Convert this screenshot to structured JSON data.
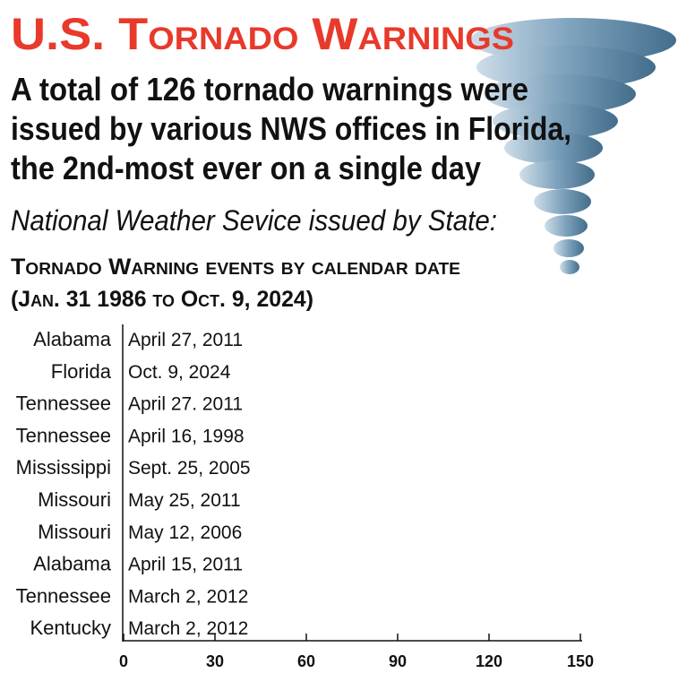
{
  "chart_data": {
    "type": "bar",
    "title": "U.S. Tornado Warnings",
    "subtitle": [
      "A total of 126 tornado warnings were",
      "issued by various NWS offices in Florida,",
      "the 2nd-most ever on a single day"
    ],
    "caption": "National Weather Sevice issued by State:",
    "chart_title": [
      "Tornado Warning events by calendar date",
      "(Jan. 31 1986 to Oct. 9, 2024)"
    ],
    "categories": [
      "Alabama",
      "Florida",
      "Tennessee",
      "Tennessee",
      "Mississippi",
      "Missouri",
      "Missouri",
      "Alabama",
      "Tennessee",
      "Kentucky"
    ],
    "labels": [
      "April 27, 2011",
      "Oct. 9, 2024",
      "April 27. 2011",
      "April 16, 1998",
      "Sept. 25, 2005",
      "May 25, 2011",
      "May 12, 2006",
      "April 15, 2011",
      "March 2, 2012",
      "March 2, 2012"
    ],
    "xlim": [
      0,
      150
    ],
    "xticks": [
      0,
      30,
      60,
      90,
      120,
      150
    ],
    "title_color": "#e8392b"
  }
}
